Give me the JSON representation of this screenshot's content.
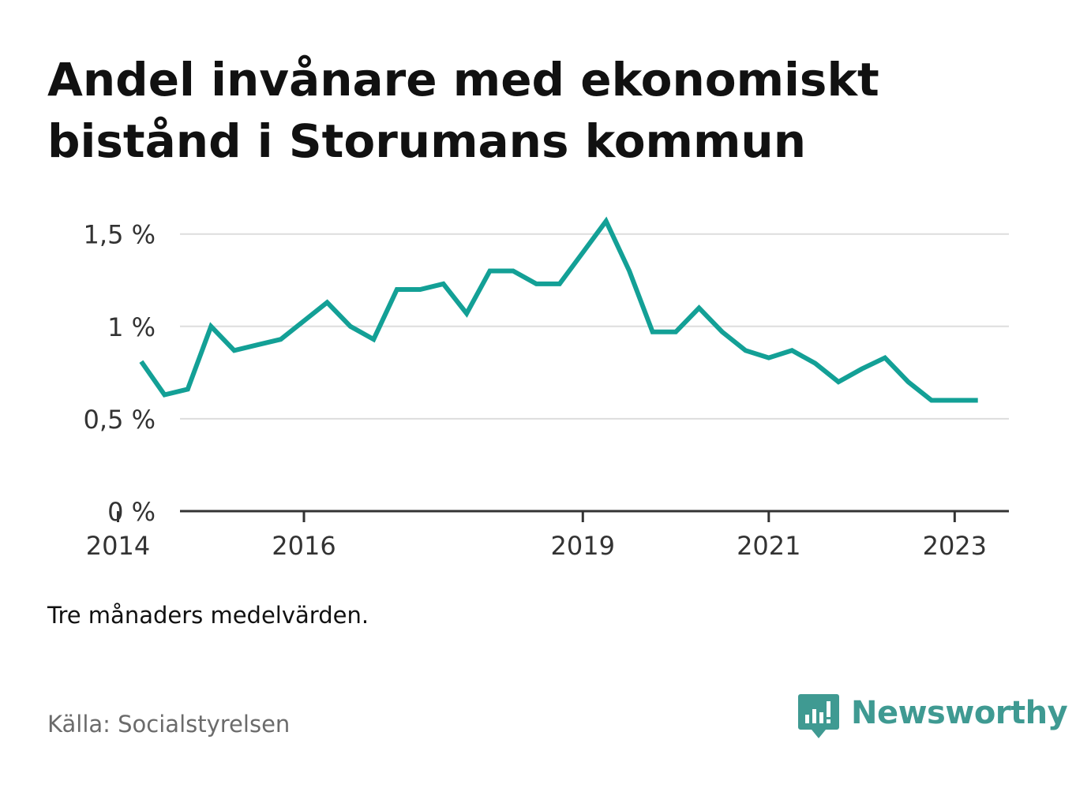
{
  "title": "Andel invånare med ekonomiskt bistånd i Storumans kommun",
  "note": "Tre månaders medelvärden.",
  "source": "Källa: Socialstyrelsen",
  "brand": {
    "name": "Newsworthy",
    "icon": "newsworthy-logo-icon",
    "color": "#3f9a92"
  },
  "colors": {
    "line": "#13a096",
    "grid": "#dddddd",
    "axis": "#333333"
  },
  "chart_data": {
    "type": "line",
    "title": "Andel invånare med ekonomiskt bistånd i Storumans kommun",
    "xlabel": "",
    "ylabel": "",
    "y_unit": "%",
    "ylim": [
      0,
      1.55
    ],
    "xlim": [
      "2014-01",
      "2023-07"
    ],
    "x_ticks": [
      "2014",
      "2016",
      "2019",
      "2021",
      "2023"
    ],
    "y_ticks": [
      "0 %",
      "0,5 %",
      "1 %",
      "1,5 %"
    ],
    "y_tick_values": [
      0,
      0.5,
      1,
      1.5
    ],
    "grid": true,
    "legend": "none",
    "series": [
      {
        "x": [
          "2014-04",
          "2014-07",
          "2014-10",
          "2015-01",
          "2015-04",
          "2015-07",
          "2015-10",
          "2016-01",
          "2016-04",
          "2016-07",
          "2016-10",
          "2017-01",
          "2017-04",
          "2017-07",
          "2017-10",
          "2018-01",
          "2018-04",
          "2018-07",
          "2018-10",
          "2019-01",
          "2019-04",
          "2019-07",
          "2019-10",
          "2020-01",
          "2020-04",
          "2020-07",
          "2020-10",
          "2021-01",
          "2021-04",
          "2021-07",
          "2021-10",
          "2022-01",
          "2022-04",
          "2022-07",
          "2022-10",
          "2023-01",
          "2023-04"
        ],
        "values": [
          0.81,
          0.63,
          0.66,
          1.0,
          0.87,
          0.9,
          0.93,
          1.03,
          1.13,
          1.0,
          0.93,
          1.2,
          1.2,
          1.23,
          1.07,
          1.3,
          1.3,
          1.23,
          1.23,
          1.4,
          1.57,
          1.3,
          0.97,
          0.97,
          1.1,
          0.97,
          0.87,
          0.83,
          0.87,
          0.8,
          0.7,
          0.77,
          0.83,
          0.7,
          0.6,
          0.6,
          0.6
        ]
      }
    ]
  }
}
